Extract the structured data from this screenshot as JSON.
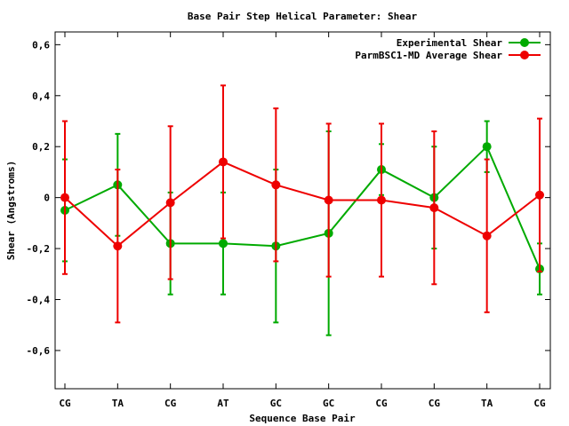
{
  "chart_data": {
    "type": "line",
    "title": "Base Pair Step Helical Parameter: Shear",
    "xlabel": "Sequence Base Pair",
    "ylabel": "Shear (Angstroms)",
    "categories": [
      "CG",
      "TA",
      "CG",
      "AT",
      "GC",
      "GC",
      "CG",
      "CG",
      "TA",
      "CG"
    ],
    "ylim": [
      -0.75,
      0.65
    ],
    "yticks": [
      -0.6,
      -0.4,
      -0.2,
      0,
      0.2,
      0.4,
      0.6
    ],
    "ytick_labels": [
      "-0,6",
      "-0,4",
      "-0,2",
      "0",
      "0,2",
      "0,4",
      "0,6"
    ],
    "grid": false,
    "legend_position": "top-right",
    "series": [
      {
        "name": "Experimental Shear",
        "color": "#00aa00",
        "values": [
          -0.05,
          0.05,
          -0.18,
          -0.18,
          -0.19,
          -0.14,
          0.11,
          0.0,
          0.2,
          -0.28
        ],
        "errors": [
          0.2,
          0.2,
          0.2,
          0.2,
          0.3,
          0.4,
          0.1,
          0.2,
          0.1,
          0.1
        ]
      },
      {
        "name": "ParmBSC1-MD Average Shear",
        "color": "#ee0000",
        "values": [
          0.0,
          -0.19,
          -0.02,
          0.14,
          0.05,
          -0.01,
          -0.01,
          -0.04,
          -0.15,
          0.01
        ],
        "errors": [
          0.3,
          0.3,
          0.3,
          0.3,
          0.3,
          0.3,
          0.3,
          0.3,
          0.3,
          0.3
        ]
      }
    ]
  }
}
